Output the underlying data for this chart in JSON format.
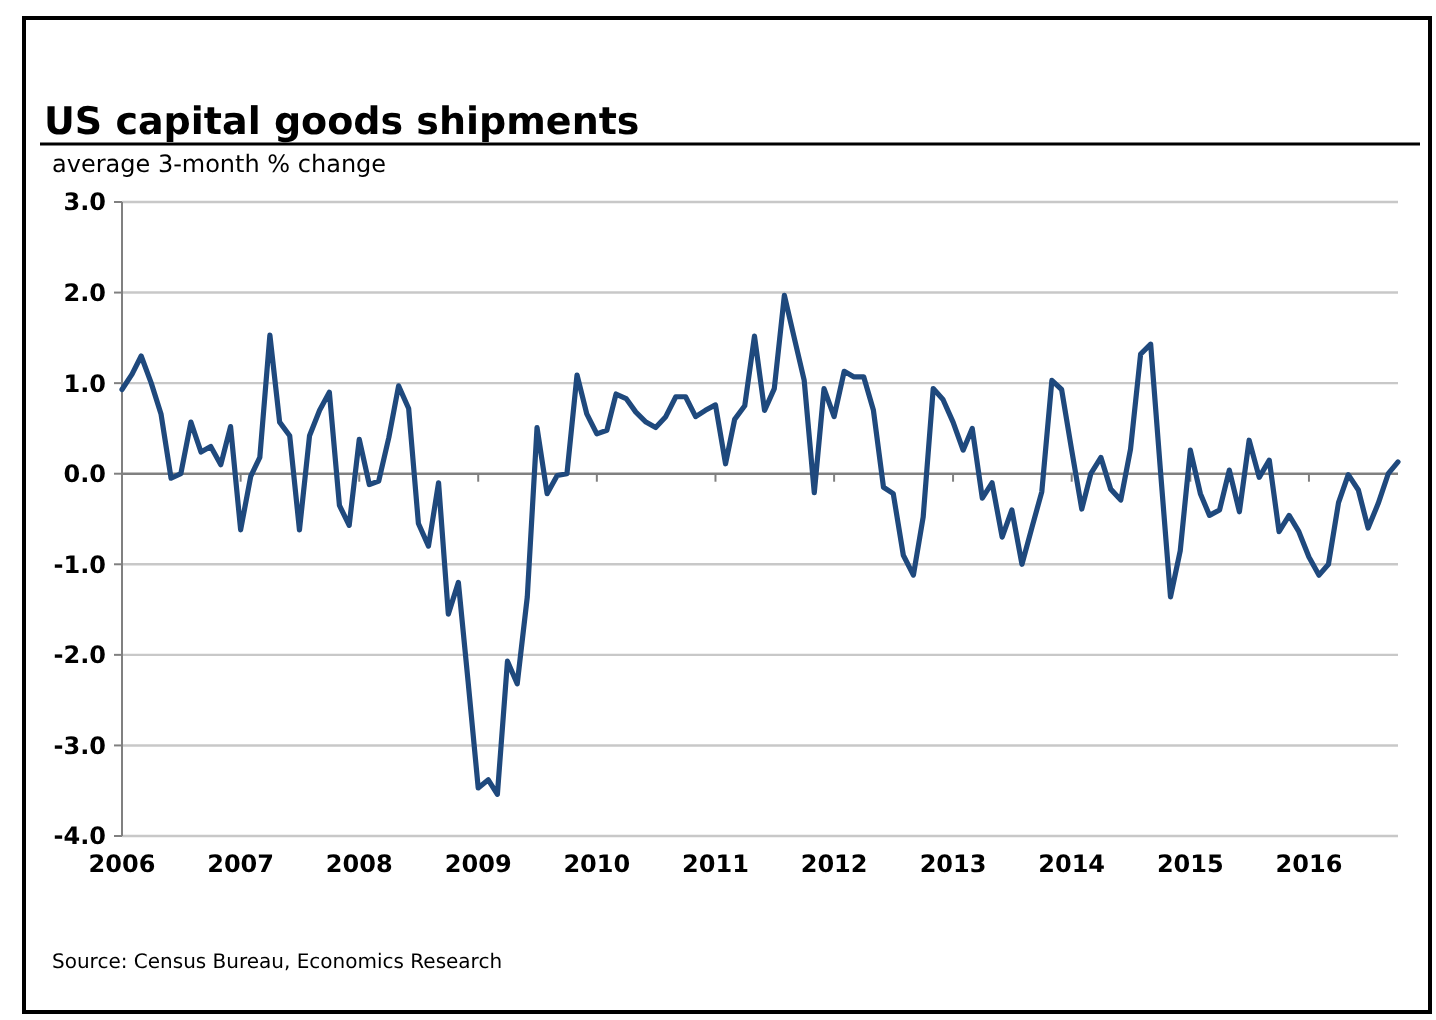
{
  "chart_data": {
    "type": "line",
    "title": "US capital goods shipments",
    "subtitle": "average 3-month % change",
    "annotations": [
      "Source: Census Bureau, Economics Research"
    ],
    "x": [
      "2006-01",
      "2006-02",
      "2006-03",
      "2006-04",
      "2006-05",
      "2006-06",
      "2006-07",
      "2006-08",
      "2006-09",
      "2006-10",
      "2006-11",
      "2006-12",
      "2007-01",
      "2007-02",
      "2007-03",
      "2007-04",
      "2007-05",
      "2007-06",
      "2007-07",
      "2007-08",
      "2007-09",
      "2007-10",
      "2007-11",
      "2007-12",
      "2008-01",
      "2008-02",
      "2008-03",
      "2008-04",
      "2008-05",
      "2008-06",
      "2008-07",
      "2008-08",
      "2008-09",
      "2008-10",
      "2008-11",
      "2008-12",
      "2009-01",
      "2009-02",
      "2009-03",
      "2009-04",
      "2009-05",
      "2009-06",
      "2009-07",
      "2009-08",
      "2009-09",
      "2009-10",
      "2009-11",
      "2009-12",
      "2010-01",
      "2010-02",
      "2010-03",
      "2010-04",
      "2010-05",
      "2010-06",
      "2010-07",
      "2010-08",
      "2010-09",
      "2010-10",
      "2010-11",
      "2010-12",
      "2011-01",
      "2011-02",
      "2011-03",
      "2011-04",
      "2011-05",
      "2011-06",
      "2011-07",
      "2011-08",
      "2011-09",
      "2011-10",
      "2011-11",
      "2011-12",
      "2012-01",
      "2012-02",
      "2012-03",
      "2012-04",
      "2012-05",
      "2012-06",
      "2012-07",
      "2012-08",
      "2012-09",
      "2012-10",
      "2012-11",
      "2012-12",
      "2013-01",
      "2013-02",
      "2013-03",
      "2013-04",
      "2013-05",
      "2013-06",
      "2013-07",
      "2013-08",
      "2013-09",
      "2013-10",
      "2013-11",
      "2013-12",
      "2014-01",
      "2014-02",
      "2014-03",
      "2014-04",
      "2014-05",
      "2014-06",
      "2014-07",
      "2014-08",
      "2014-09",
      "2014-10",
      "2014-11",
      "2014-12",
      "2015-01",
      "2015-02",
      "2015-03",
      "2015-04",
      "2015-05",
      "2015-06",
      "2015-07",
      "2015-08",
      "2015-09",
      "2015-10",
      "2015-11",
      "2015-12",
      "2016-01",
      "2016-02",
      "2016-03",
      "2016-04",
      "2016-05",
      "2016-06",
      "2016-07",
      "2016-08",
      "2016-09",
      "2016-10"
    ],
    "series": [
      {
        "color": "#1f497d",
        "values": [
          0.93,
          1.1,
          1.3,
          1.0,
          0.66,
          -0.05,
          0.0,
          0.57,
          0.24,
          0.3,
          0.1,
          0.52,
          -0.62,
          -0.03,
          0.18,
          1.53,
          0.57,
          0.42,
          -0.62,
          0.42,
          0.7,
          0.9,
          -0.35,
          -0.57,
          0.38,
          -0.12,
          -0.08,
          0.4,
          0.97,
          0.72,
          -0.55,
          -0.8,
          -0.1,
          -1.55,
          -1.2,
          -2.3,
          -3.47,
          -3.38,
          -3.54,
          -2.07,
          -2.32,
          -1.36,
          0.51,
          -0.22,
          -0.02,
          0.0,
          1.09,
          0.66,
          0.44,
          0.48,
          0.88,
          0.83,
          0.68,
          0.57,
          0.51,
          0.63,
          0.85,
          0.85,
          0.63,
          0.7,
          0.76,
          0.11,
          0.6,
          0.75,
          1.52,
          0.7,
          0.94,
          1.97,
          1.49,
          1.03,
          -0.21,
          0.94,
          0.63,
          1.13,
          1.07,
          1.07,
          0.7,
          -0.15,
          -0.22,
          -0.9,
          -1.12,
          -0.48,
          0.94,
          0.82,
          0.57,
          0.26,
          0.5,
          -0.27,
          -0.1,
          -0.7,
          -0.4,
          -1.0,
          -0.59,
          -0.2,
          1.03,
          0.93,
          0.26,
          -0.39,
          0.0,
          0.18,
          -0.17,
          -0.29,
          0.27,
          1.32,
          1.43,
          0.04,
          -1.36,
          -0.85,
          0.26,
          -0.22,
          -0.46,
          -0.4,
          0.04,
          -0.42,
          0.37,
          -0.04,
          0.15,
          -0.64,
          -0.46,
          -0.64,
          -0.92,
          -1.12,
          -1.0,
          -0.32,
          -0.01,
          -0.18,
          -0.6,
          -0.33,
          0.0,
          0.13
        ]
      }
    ],
    "xlim": [
      "2006-01",
      "2016-10"
    ],
    "xticks": [
      {
        "value": "2006-01",
        "label": "2006"
      },
      {
        "value": "2007-01",
        "label": "2007"
      },
      {
        "value": "2008-01",
        "label": "2008"
      },
      {
        "value": "2009-01",
        "label": "2009"
      },
      {
        "value": "2010-01",
        "label": "2010"
      },
      {
        "value": "2011-01",
        "label": "2011"
      },
      {
        "value": "2012-01",
        "label": "2012"
      },
      {
        "value": "2013-01",
        "label": "2013"
      },
      {
        "value": "2014-01",
        "label": "2014"
      },
      {
        "value": "2015-01",
        "label": "2015"
      },
      {
        "value": "2016-01",
        "label": "2016"
      }
    ],
    "ylim": [
      -4,
      3
    ],
    "yticks": [
      {
        "value": 3,
        "label": "3.0"
      },
      {
        "value": 2,
        "label": "2.0"
      },
      {
        "value": 1,
        "label": "1.0"
      },
      {
        "value": 0,
        "label": "0.0"
      },
      {
        "value": -1,
        "label": "-1.0"
      },
      {
        "value": -2,
        "label": "-2.0"
      },
      {
        "value": -3,
        "label": "-3.0"
      },
      {
        "value": -4,
        "label": "-4.0"
      }
    ],
    "grid": "y",
    "marker": "none",
    "line_style": "solid"
  }
}
